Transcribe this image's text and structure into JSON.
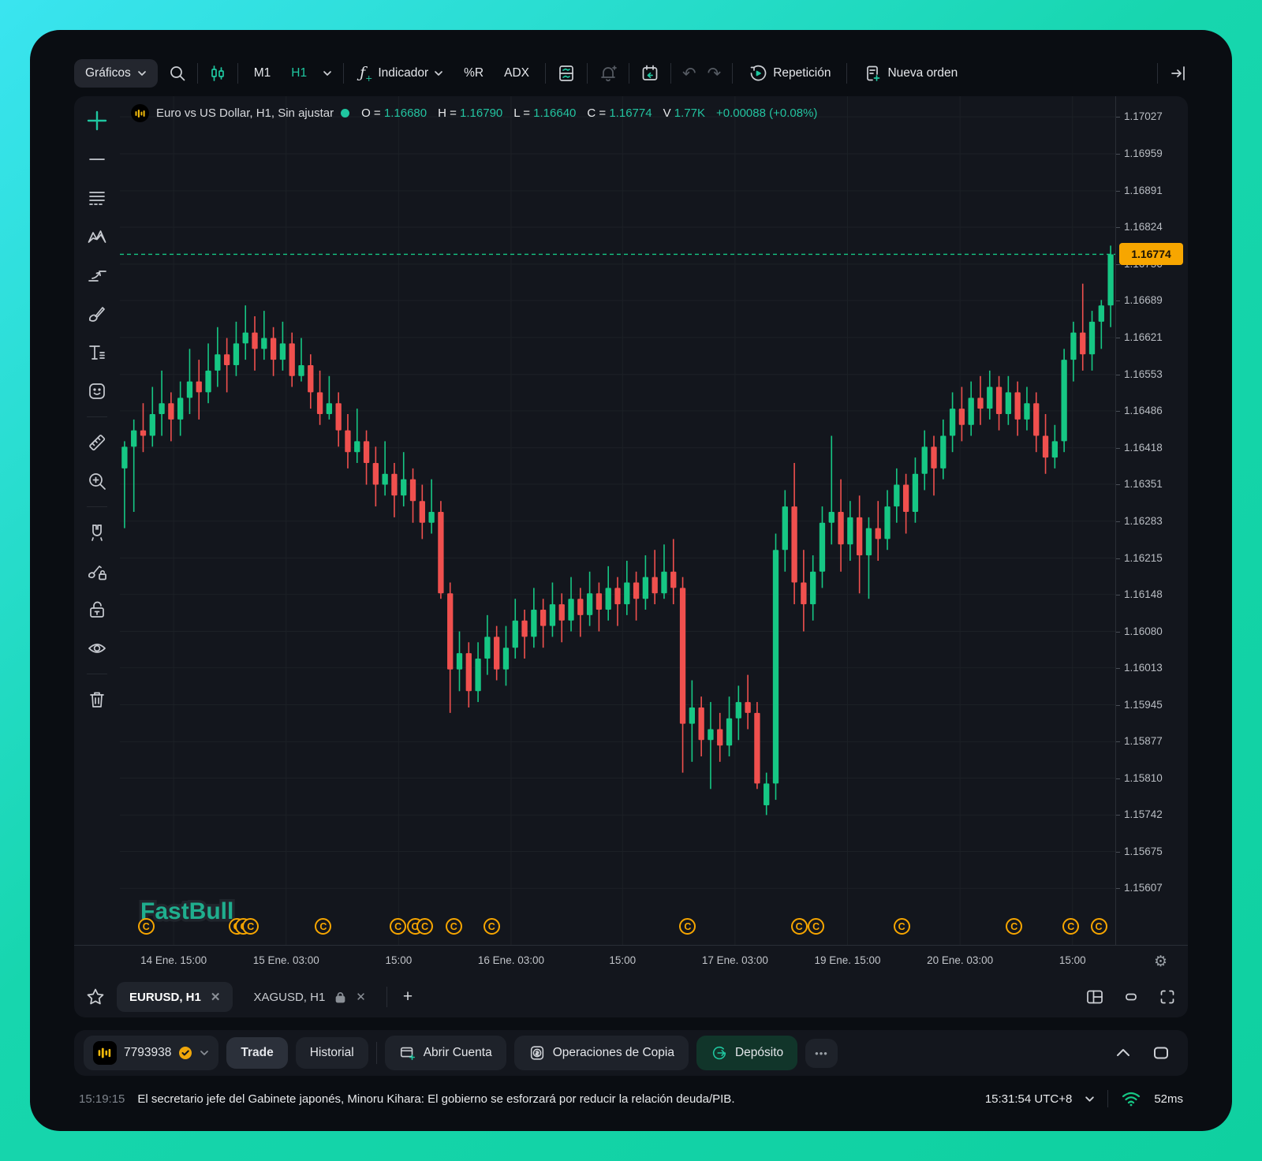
{
  "toolbar": {
    "charts_label": "Gráficos",
    "tf_m1": "M1",
    "tf_h1": "H1",
    "indicator_label": "Indicador",
    "wpr_label": "%R",
    "adx_label": "ADX",
    "fx_glyph": "ƒ",
    "fx_plus": "+",
    "undo_glyph": "↶",
    "redo_glyph": "↷",
    "replay_label": "Repetición",
    "new_order_label": "Nueva orden"
  },
  "legend": {
    "title": "Euro vs US Dollar, H1, Sin ajustar",
    "o_label": "O =",
    "o_value": "1.16680",
    "h_label": "H =",
    "h_value": "1.16790",
    "l_label": "L =",
    "l_value": "1.16640",
    "c_label": "C =",
    "c_value": "1.16774",
    "v_label": "V",
    "v_value": "1.77K",
    "change": "+0.00088 (+0.08%)"
  },
  "chart_data": {
    "type": "candlestick",
    "symbol": "EURUSD",
    "timeframe": "H1",
    "current_price": 1.16774,
    "current_price_label": "1.16774",
    "scale": {
      "max": 1.17065,
      "min": 1.15503
    },
    "colors": {
      "up": "#16c784",
      "down": "#f0504e",
      "grid": "#1c2026",
      "orange": "#f7a600"
    },
    "y_axis_labels": [
      "1.17027",
      "1.16959",
      "1.16891",
      "1.16824",
      "1.16756",
      "1.16689",
      "1.16621",
      "1.16553",
      "1.16486",
      "1.16418",
      "1.16351",
      "1.16283",
      "1.16215",
      "1.16148",
      "1.16080",
      "1.16013",
      "1.15945",
      "1.15877",
      "1.15810",
      "1.15742",
      "1.15675",
      "1.15607"
    ],
    "x_ticks": [
      {
        "label": "14 Ene. 15:00",
        "pos": 0.054
      },
      {
        "label": "15 Ene. 03:00",
        "pos": 0.167
      },
      {
        "label": "15:00",
        "pos": 0.28
      },
      {
        "label": "16 Ene. 03:00",
        "pos": 0.393
      },
      {
        "label": "15:00",
        "pos": 0.505
      },
      {
        "label": "17 Ene. 03:00",
        "pos": 0.618
      },
      {
        "label": "19 Ene. 15:00",
        "pos": 0.731
      },
      {
        "label": "20 Ene. 03:00",
        "pos": 0.844
      },
      {
        "label": "15:00",
        "pos": 0.957
      }
    ],
    "calendar_markers": {
      "glyph": "C",
      "positions": [
        0.026,
        0.117,
        0.124,
        0.131,
        0.204,
        0.279,
        0.296,
        0.306,
        0.335,
        0.373,
        0.57,
        0.682,
        0.699,
        0.785,
        0.898,
        0.955,
        0.983
      ]
    },
    "watermark": "FastBull",
    "candles": [
      [
        1.1638,
        1.1643,
        1.1627,
        1.1642
      ],
      [
        1.1642,
        1.1647,
        1.163,
        1.1645
      ],
      [
        1.1645,
        1.165,
        1.1641,
        1.1644
      ],
      [
        1.1644,
        1.1653,
        1.1642,
        1.1648
      ],
      [
        1.1648,
        1.1656,
        1.1644,
        1.165
      ],
      [
        1.165,
        1.1652,
        1.1643,
        1.1647
      ],
      [
        1.1647,
        1.1654,
        1.1644,
        1.1651
      ],
      [
        1.1651,
        1.166,
        1.1648,
        1.1654
      ],
      [
        1.1654,
        1.1658,
        1.1647,
        1.1652
      ],
      [
        1.1652,
        1.1661,
        1.165,
        1.1656
      ],
      [
        1.1656,
        1.1664,
        1.1653,
        1.1659
      ],
      [
        1.1659,
        1.1662,
        1.1652,
        1.1657
      ],
      [
        1.1657,
        1.1665,
        1.1655,
        1.1661
      ],
      [
        1.1661,
        1.1668,
        1.1658,
        1.1663
      ],
      [
        1.1663,
        1.1666,
        1.1656,
        1.166
      ],
      [
        1.166,
        1.1667,
        1.1658,
        1.1662
      ],
      [
        1.1662,
        1.1664,
        1.1655,
        1.1658
      ],
      [
        1.1658,
        1.1665,
        1.1656,
        1.1661
      ],
      [
        1.1661,
        1.1663,
        1.1653,
        1.1655
      ],
      [
        1.1655,
        1.1662,
        1.1654,
        1.1657
      ],
      [
        1.1657,
        1.1659,
        1.1649,
        1.1652
      ],
      [
        1.1652,
        1.1656,
        1.1646,
        1.1648
      ],
      [
        1.1648,
        1.1655,
        1.1647,
        1.165
      ],
      [
        1.165,
        1.1652,
        1.1642,
        1.1645
      ],
      [
        1.1645,
        1.1648,
        1.1638,
        1.1641
      ],
      [
        1.1641,
        1.1649,
        1.1639,
        1.1643
      ],
      [
        1.1643,
        1.1645,
        1.1635,
        1.1639
      ],
      [
        1.1639,
        1.1642,
        1.1631,
        1.1635
      ],
      [
        1.1635,
        1.1643,
        1.1633,
        1.1637
      ],
      [
        1.1637,
        1.1639,
        1.1629,
        1.1633
      ],
      [
        1.1633,
        1.1641,
        1.1631,
        1.1636
      ],
      [
        1.1636,
        1.1638,
        1.1628,
        1.1632
      ],
      [
        1.1632,
        1.1635,
        1.1625,
        1.1628
      ],
      [
        1.1628,
        1.1636,
        1.1626,
        1.163
      ],
      [
        1.163,
        1.1632,
        1.1614,
        1.1615
      ],
      [
        1.1615,
        1.1617,
        1.1593,
        1.1601
      ],
      [
        1.1601,
        1.1608,
        1.1597,
        1.1604
      ],
      [
        1.1604,
        1.1606,
        1.1594,
        1.1597
      ],
      [
        1.1597,
        1.1606,
        1.1595,
        1.1603
      ],
      [
        1.1603,
        1.1611,
        1.16,
        1.1607
      ],
      [
        1.1607,
        1.1609,
        1.1599,
        1.1601
      ],
      [
        1.1601,
        1.1609,
        1.1598,
        1.1605
      ],
      [
        1.1605,
        1.1614,
        1.1603,
        1.161
      ],
      [
        1.161,
        1.1612,
        1.1603,
        1.1607
      ],
      [
        1.1607,
        1.1616,
        1.1605,
        1.1612
      ],
      [
        1.1612,
        1.1614,
        1.1605,
        1.1609
      ],
      [
        1.1609,
        1.1617,
        1.1607,
        1.1613
      ],
      [
        1.1613,
        1.1615,
        1.1606,
        1.161
      ],
      [
        1.161,
        1.1618,
        1.1608,
        1.1614
      ],
      [
        1.1614,
        1.1616,
        1.1607,
        1.1611
      ],
      [
        1.1611,
        1.1619,
        1.1609,
        1.1615
      ],
      [
        1.1615,
        1.1617,
        1.1608,
        1.1612
      ],
      [
        1.1612,
        1.162,
        1.161,
        1.1616
      ],
      [
        1.1616,
        1.1618,
        1.1609,
        1.1613
      ],
      [
        1.1613,
        1.1621,
        1.1611,
        1.1617
      ],
      [
        1.1617,
        1.1619,
        1.161,
        1.1614
      ],
      [
        1.1614,
        1.1622,
        1.1612,
        1.1618
      ],
      [
        1.1618,
        1.1623,
        1.1613,
        1.1615
      ],
      [
        1.1615,
        1.1624,
        1.1614,
        1.1619
      ],
      [
        1.1619,
        1.1625,
        1.1613,
        1.1616
      ],
      [
        1.1616,
        1.1618,
        1.1582,
        1.1591
      ],
      [
        1.1591,
        1.1599,
        1.1584,
        1.1594
      ],
      [
        1.1594,
        1.1596,
        1.1585,
        1.1588
      ],
      [
        1.1588,
        1.1595,
        1.1579,
        1.159
      ],
      [
        1.159,
        1.1593,
        1.1584,
        1.1587
      ],
      [
        1.1587,
        1.1596,
        1.1585,
        1.1592
      ],
      [
        1.1592,
        1.1598,
        1.1588,
        1.1595
      ],
      [
        1.1595,
        1.16,
        1.159,
        1.1593
      ],
      [
        1.1593,
        1.1595,
        1.1579,
        1.158
      ],
      [
        1.1576,
        1.1582,
        1.15742,
        1.158
      ],
      [
        1.158,
        1.1626,
        1.1577,
        1.1623
      ],
      [
        1.1623,
        1.1634,
        1.1619,
        1.1631
      ],
      [
        1.1631,
        1.1639,
        1.1613,
        1.1617
      ],
      [
        1.1617,
        1.1623,
        1.1608,
        1.1613
      ],
      [
        1.1613,
        1.1622,
        1.161,
        1.1619
      ],
      [
        1.1619,
        1.1631,
        1.1616,
        1.1628
      ],
      [
        1.1628,
        1.1644,
        1.1624,
        1.163
      ],
      [
        1.163,
        1.1636,
        1.1619,
        1.1624
      ],
      [
        1.1624,
        1.1632,
        1.1621,
        1.1629
      ],
      [
        1.1629,
        1.1633,
        1.1615,
        1.1622
      ],
      [
        1.1622,
        1.1629,
        1.1614,
        1.1627
      ],
      [
        1.1627,
        1.1632,
        1.1621,
        1.1625
      ],
      [
        1.1625,
        1.1634,
        1.1623,
        1.1631
      ],
      [
        1.1631,
        1.1638,
        1.1628,
        1.1635
      ],
      [
        1.1635,
        1.1637,
        1.1626,
        1.163
      ],
      [
        1.163,
        1.164,
        1.1628,
        1.1637
      ],
      [
        1.1637,
        1.1645,
        1.1634,
        1.1642
      ],
      [
        1.1642,
        1.1644,
        1.1633,
        1.1638
      ],
      [
        1.1638,
        1.1647,
        1.1636,
        1.1644
      ],
      [
        1.1644,
        1.1652,
        1.1641,
        1.1649
      ],
      [
        1.1649,
        1.1653,
        1.1643,
        1.1646
      ],
      [
        1.1646,
        1.1654,
        1.1644,
        1.1651
      ],
      [
        1.1651,
        1.1655,
        1.1646,
        1.1649
      ],
      [
        1.1649,
        1.1656,
        1.1647,
        1.1653
      ],
      [
        1.1653,
        1.1655,
        1.1645,
        1.1648
      ],
      [
        1.1648,
        1.1655,
        1.1646,
        1.1652
      ],
      [
        1.1652,
        1.1654,
        1.1644,
        1.1647
      ],
      [
        1.1647,
        1.1653,
        1.1645,
        1.165
      ],
      [
        1.165,
        1.1652,
        1.1641,
        1.1644
      ],
      [
        1.1644,
        1.1648,
        1.1637,
        1.164
      ],
      [
        1.164,
        1.1646,
        1.1638,
        1.1643
      ],
      [
        1.1643,
        1.166,
        1.1641,
        1.1658
      ],
      [
        1.1658,
        1.1665,
        1.1654,
        1.1663
      ],
      [
        1.1663,
        1.1672,
        1.1656,
        1.1659
      ],
      [
        1.1659,
        1.1667,
        1.1656,
        1.1665
      ],
      [
        1.1665,
        1.1669,
        1.166,
        1.1668
      ],
      [
        1.1668,
        1.1679,
        1.1664,
        1.16774
      ]
    ],
    "gear_glyph": "⚙"
  },
  "tabs": {
    "tab1": "EURUSD, H1",
    "tab2": "XAGUSD, H1",
    "close_glyph": "✕",
    "add_glyph": "+"
  },
  "bottom_bar": {
    "account_id": "7793938",
    "trade_label": "Trade",
    "history_label": "Historial",
    "open_account_label": "Abrir Cuenta",
    "copy_ops_label": "Operaciones de Copia",
    "deposit_label": "Depósito",
    "more_glyph": "•••"
  },
  "status_bar": {
    "news_time": "15:19:15",
    "news_text": "El secretario jefe del Gabinete japonés, Minoru Kihara: El gobierno se esforzará por reducir la relación deuda/PIB.",
    "clock": "15:31:54 UTC+8",
    "latency": "52ms"
  }
}
